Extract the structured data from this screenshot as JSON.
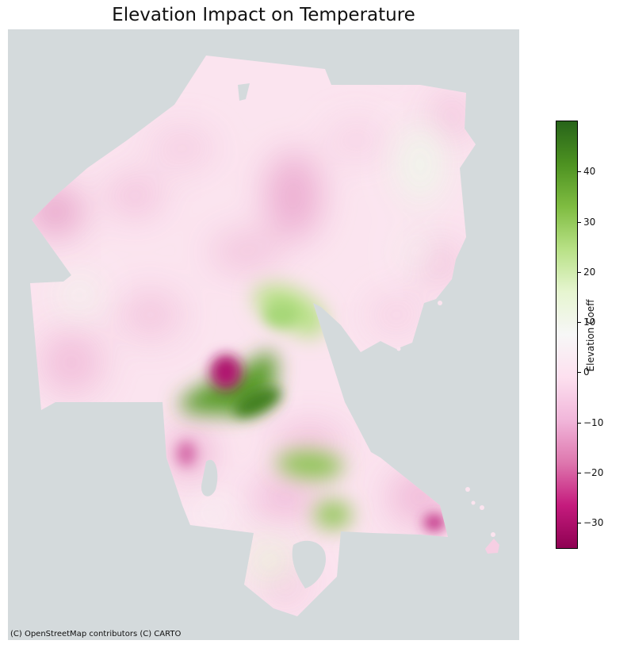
{
  "title": "Elevation Impact on Temperature",
  "attribution": "(C) OpenStreetMap contributors (C) CARTO",
  "colorbar": {
    "label": "Elevation Coeff",
    "min": -35,
    "max": 50,
    "ticks": [
      {
        "value": 40,
        "label": "40"
      },
      {
        "value": 30,
        "label": "30"
      },
      {
        "value": 20,
        "label": "20"
      },
      {
        "value": 10,
        "label": "10"
      },
      {
        "value": 0,
        "label": "0"
      },
      {
        "value": -10,
        "label": "−10"
      },
      {
        "value": -20,
        "label": "−20"
      },
      {
        "value": -30,
        "label": "−30"
      }
    ],
    "colormap": "PiYG",
    "colors": [
      "#8e0152",
      "#c51b7d",
      "#de77ae",
      "#f1b6da",
      "#fde0ef",
      "#f7f7f7",
      "#e6f5d0",
      "#b8e186",
      "#7fbc41",
      "#4d9221",
      "#276419"
    ]
  },
  "map": {
    "basemap_color": "#d4dadc",
    "hotspots": [
      {
        "name": "green-upper-lobe",
        "value": 22
      },
      {
        "name": "green-central-band",
        "value": 45
      },
      {
        "name": "green-lower-band",
        "value": 30
      },
      {
        "name": "green-southern-patch",
        "value": 28
      },
      {
        "name": "magenta-central-core",
        "value": -33
      },
      {
        "name": "magenta-southeast-spot",
        "value": -28
      },
      {
        "name": "pink-northwest-patch",
        "value": -18
      },
      {
        "name": "pink-southwest-patch",
        "value": -18
      }
    ]
  }
}
